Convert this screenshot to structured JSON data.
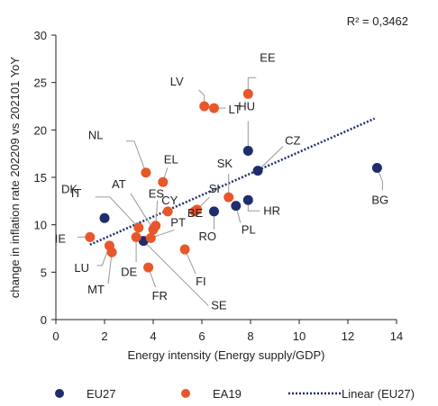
{
  "chart_data": {
    "type": "scatter",
    "annotation": "R² = 0,3462",
    "xlabel": "Energy intensity (Energy supply/GDP)",
    "ylabel": "change in inflation rate 202209 vs 202101 YoY",
    "xlim": [
      0,
      14
    ],
    "ylim": [
      0,
      30
    ],
    "xticks": [
      "0",
      "2",
      "4",
      "6",
      "8",
      "10",
      "12",
      "14"
    ],
    "yticks": [
      "0",
      "5",
      "10",
      "15",
      "20",
      "25",
      "30"
    ],
    "grid": false,
    "legend_position": "bottom",
    "series": [
      {
        "name": "EU27",
        "color": "#1f2d6b",
        "points": [
          {
            "label": "DK",
            "x": 2.0,
            "y": 10.7
          },
          {
            "label": "BG",
            "x": 13.2,
            "y": 16.0
          },
          {
            "label": "HU",
            "x": 7.9,
            "y": 17.8
          },
          {
            "label": "CZ",
            "x": 8.3,
            "y": 15.7
          },
          {
            "label": "HR",
            "x": 7.9,
            "y": 12.6
          },
          {
            "label": "PL",
            "x": 7.4,
            "y": 12.0
          },
          {
            "label": "RO",
            "x": 6.5,
            "y": 11.4
          },
          {
            "label": "SE",
            "x": 3.6,
            "y": 8.3
          }
        ]
      },
      {
        "name": "EA19",
        "color": "#e8572a",
        "points": [
          {
            "label": "EE",
            "x": 7.9,
            "y": 23.8
          },
          {
            "label": "LV",
            "x": 6.1,
            "y": 22.5
          },
          {
            "label": "LT",
            "x": 6.5,
            "y": 22.3
          },
          {
            "label": "NL",
            "x": 3.7,
            "y": 15.5
          },
          {
            "label": "EL",
            "x": 4.4,
            "y": 14.5
          },
          {
            "label": "SK",
            "x": 7.1,
            "y": 12.9
          },
          {
            "label": "SI",
            "x": 5.8,
            "y": 11.6
          },
          {
            "label": "BE",
            "x": 5.7,
            "y": 11.4
          },
          {
            "label": "CY",
            "x": 4.6,
            "y": 11.4
          },
          {
            "label": "ES",
            "x": 4.1,
            "y": 9.9
          },
          {
            "label": "AT",
            "x": 4.0,
            "y": 9.5
          },
          {
            "label": "IT",
            "x": 3.4,
            "y": 9.7
          },
          {
            "label": "DE",
            "x": 3.3,
            "y": 8.7
          },
          {
            "label": "IE",
            "x": 1.4,
            "y": 8.7
          },
          {
            "label": "LU",
            "x": 2.2,
            "y": 7.8
          },
          {
            "label": "MT",
            "x": 2.3,
            "y": 7.1
          },
          {
            "label": "FI",
            "x": 5.3,
            "y": 7.4
          },
          {
            "label": "PT",
            "x": 3.9,
            "y": 8.6
          },
          {
            "label": "FR",
            "x": 3.8,
            "y": 5.5
          }
        ]
      }
    ],
    "trendline": {
      "name": "Linear (EU27)",
      "color": "#1f2d6b",
      "style": "dotted",
      "x": [
        1.4,
        13.1
      ],
      "y": [
        7.9,
        21.2
      ]
    }
  }
}
